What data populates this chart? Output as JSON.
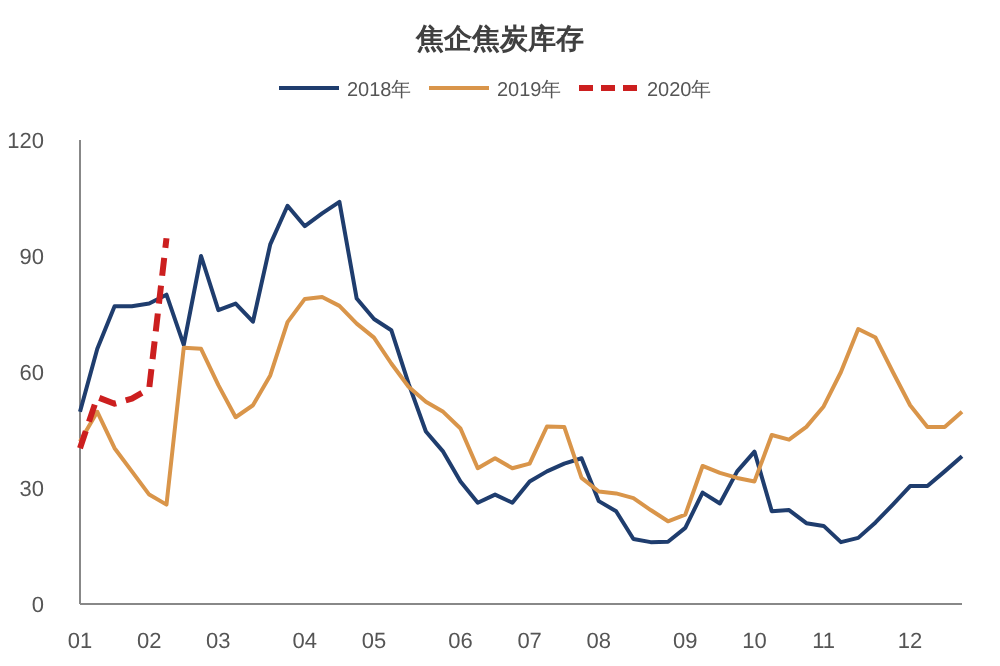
{
  "chart_data": {
    "type": "line",
    "title": "焦企焦炭库存",
    "categories": [
      "01",
      null,
      null,
      null,
      "02",
      null,
      null,
      null,
      "03",
      null,
      null,
      null,
      null,
      "04",
      null,
      null,
      null,
      "05",
      null,
      null,
      null,
      null,
      "06",
      null,
      null,
      null,
      "07",
      null,
      null,
      null,
      "08",
      null,
      null,
      null,
      null,
      "09",
      null,
      null,
      null,
      "10",
      null,
      null,
      null,
      "11",
      null,
      null,
      null,
      null,
      "12",
      null,
      null,
      null
    ],
    "series": [
      {
        "name": "2018年",
        "color": "#1f3d6e",
        "values": [
          49.7,
          66,
          77,
          77,
          77.7,
          80,
          67,
          90,
          76,
          77.7,
          73,
          93,
          103,
          97.7,
          101,
          104,
          79,
          73.7,
          70.8,
          57,
          44.6,
          39.4,
          31.7,
          26.2,
          28.3,
          26.2,
          31.7,
          34.3,
          36.3,
          37.7,
          26.6,
          24,
          16.8,
          16,
          16.1,
          19.7,
          28.8,
          26,
          34.3,
          39.4,
          24,
          24.3,
          20.9,
          20.2,
          16,
          17.1,
          21.1,
          25.7,
          30.5,
          30.5,
          34.3,
          38.2
        ]
      },
      {
        "name": "2019年",
        "color": "#d9954a",
        "values": [
          42,
          49.7,
          40.3,
          34.3,
          28.3,
          25.7,
          66.3,
          66,
          56.6,
          48.3,
          51.4,
          59.1,
          72.9,
          78.9,
          79.4,
          77.1,
          72.5,
          68.9,
          62.2,
          56.2,
          52.3,
          49.7,
          45.4,
          35.1,
          37.7,
          35.1,
          36.3,
          45.9,
          45.8,
          32.6,
          29.1,
          28.6,
          27.4,
          24.3,
          21.4,
          23.1,
          35.7,
          33.9,
          32.6,
          31.7,
          43.7,
          42.5,
          45.8,
          51.1,
          60,
          71.1,
          68.9,
          60,
          51.4,
          45.8,
          45.8,
          49.7
        ]
      },
      {
        "name": "2020年",
        "color": "#cc1f1f",
        "line_style": "dashed",
        "values": [
          40.3,
          53.5,
          51.8,
          53.1,
          55.7,
          94.6,
          null,
          null,
          null,
          null,
          null,
          null,
          null,
          null,
          null,
          null,
          null,
          null,
          null,
          null,
          null,
          null,
          null,
          null,
          null,
          null,
          null,
          null,
          null,
          null,
          null,
          null,
          null,
          null,
          null,
          null,
          null,
          null,
          null,
          null,
          null,
          null,
          null,
          null,
          null,
          null,
          null,
          null,
          null,
          null,
          null,
          null
        ]
      }
    ],
    "ylim": [
      0,
      120
    ],
    "yticks": [
      0,
      30,
      60,
      90,
      120
    ],
    "legend": "top",
    "grid": false
  }
}
